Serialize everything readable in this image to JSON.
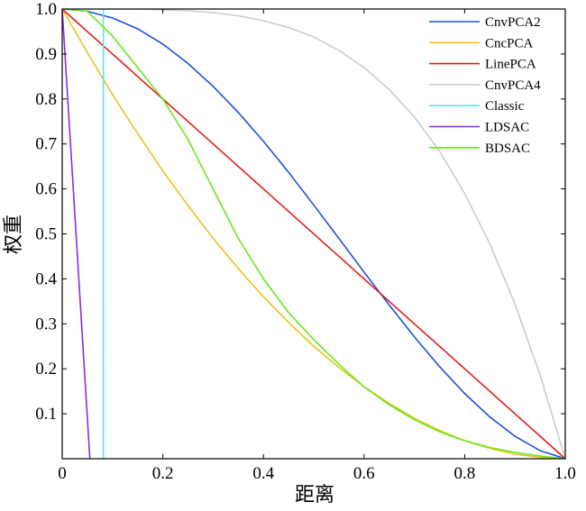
{
  "chart_data": {
    "type": "line",
    "title": "",
    "xlabel": "距离",
    "ylabel": "权重",
    "xlim": [
      0,
      1
    ],
    "ylim": [
      0,
      1
    ],
    "xticks": [
      0,
      0.2,
      0.4,
      0.6,
      0.8,
      1.0
    ],
    "xtick_labels": [
      "0",
      "0.2",
      "0.4",
      "0.6",
      "0.8",
      "1.0"
    ],
    "yticks": [
      0.1,
      0.2,
      0.3,
      0.4,
      0.5,
      0.6,
      0.7,
      0.8,
      0.9,
      1.0
    ],
    "ytick_labels": [
      "0.1",
      "0.2",
      "0.3",
      "0.4",
      "0.5",
      "0.6",
      "0.7",
      "0.8",
      "0.9",
      "1.0"
    ],
    "grid": false,
    "legend_position": "top-right",
    "series": [
      {
        "name": "CnvPCA2",
        "color": "#1f4fe0",
        "x": [
          0,
          0.05,
          0.1,
          0.15,
          0.2,
          0.25,
          0.3,
          0.35,
          0.4,
          0.45,
          0.5,
          0.55,
          0.6,
          0.65,
          0.7,
          0.75,
          0.8,
          0.85,
          0.9,
          0.95,
          1.0
        ],
        "y": [
          1.0,
          0.995,
          0.98,
          0.956,
          0.922,
          0.879,
          0.828,
          0.77,
          0.706,
          0.637,
          0.564,
          0.49,
          0.415,
          0.342,
          0.271,
          0.205,
          0.145,
          0.093,
          0.05,
          0.018,
          0.0
        ]
      },
      {
        "name": "CncPCA",
        "color": "#e8c31c",
        "x": [
          0,
          0.05,
          0.1,
          0.15,
          0.2,
          0.25,
          0.3,
          0.35,
          0.4,
          0.45,
          0.5,
          0.55,
          0.6,
          0.65,
          0.7,
          0.75,
          0.8,
          0.85,
          0.9,
          0.95,
          1.0
        ],
        "y": [
          1.0,
          0.903,
          0.81,
          0.723,
          0.64,
          0.563,
          0.49,
          0.423,
          0.36,
          0.303,
          0.25,
          0.203,
          0.16,
          0.123,
          0.09,
          0.063,
          0.04,
          0.023,
          0.01,
          0.003,
          0.0
        ]
      },
      {
        "name": "LinePCA",
        "color": "#e51e1e",
        "x": [
          0,
          1.0
        ],
        "y": [
          1.0,
          0.0
        ]
      },
      {
        "name": "CnvPCA4",
        "color": "#cccccc",
        "x": [
          0,
          0.05,
          0.1,
          0.15,
          0.2,
          0.25,
          0.3,
          0.35,
          0.4,
          0.45,
          0.5,
          0.55,
          0.6,
          0.65,
          0.7,
          0.75,
          0.8,
          0.85,
          0.9,
          0.95,
          1.0
        ],
        "y": [
          1.0,
          1.0,
          1.0,
          1.0,
          0.998,
          0.996,
          0.992,
          0.985,
          0.974,
          0.959,
          0.938,
          0.908,
          0.87,
          0.821,
          0.76,
          0.684,
          0.59,
          0.478,
          0.344,
          0.186,
          0.0
        ]
      },
      {
        "name": "Classic",
        "color": "#5fe3e8",
        "x": [
          0.082,
          0.082
        ],
        "y": [
          0.0,
          1.0
        ]
      },
      {
        "name": "LDSAC",
        "color": "#8b2be2",
        "x": [
          0,
          0.055
        ],
        "y": [
          1.0,
          0.0
        ]
      },
      {
        "name": "BDSAC",
        "color": "#66e81c",
        "x": [
          0,
          0.05,
          0.1,
          0.15,
          0.2,
          0.25,
          0.3,
          0.35,
          0.4,
          0.45,
          0.5,
          0.55,
          0.6,
          0.65,
          0.7,
          0.75,
          0.8,
          0.85,
          0.9,
          0.95,
          1.0
        ],
        "y": [
          1.0,
          0.995,
          0.94,
          0.87,
          0.8,
          0.71,
          0.6,
          0.49,
          0.4,
          0.325,
          0.265,
          0.21,
          0.16,
          0.12,
          0.087,
          0.06,
          0.04,
          0.025,
          0.014,
          0.006,
          0.0
        ]
      }
    ]
  }
}
